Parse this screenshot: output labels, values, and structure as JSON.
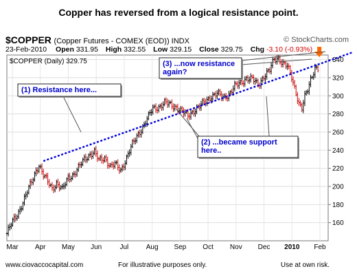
{
  "headline": "Copper has reversed from a logical resistance point.",
  "symbol": "$COPPER",
  "symbol_desc": "(Copper Futures - COMEX (EOD)) INDX",
  "brand": "© StockCharts.com",
  "ohlc": {
    "date": "23-Feb-2010",
    "open_label": "Open",
    "open": "331.95",
    "high_label": "High",
    "high": "332.55",
    "low_label": "Low",
    "low": "329.15",
    "close_label": "Close",
    "close": "329.75",
    "chg_label": "Chg",
    "chg": "-3.10 (-0.93%)"
  },
  "chart_data": {
    "type": "ohlc",
    "legend": "$COPPER (Daily) 329.75",
    "months": [
      "Mar",
      "Apr",
      "May",
      "Jun",
      "Jul",
      "Aug",
      "Sep",
      "Oct",
      "Nov",
      "Dec",
      "2010",
      "Feb"
    ],
    "ylim": [
      140,
      345
    ],
    "yticks": [
      160,
      180,
      200,
      220,
      240,
      260,
      280,
      300,
      320,
      340
    ],
    "axis_side": "right",
    "grid": true,
    "colors": {
      "up": "#000000",
      "down": "#cc0000",
      "trendline": "#0000dd",
      "arrow": "#ff6600"
    },
    "prices": [
      [
        0,
        148
      ],
      [
        3,
        158
      ],
      [
        8,
        172
      ],
      [
        13,
        190
      ],
      [
        17,
        205
      ],
      [
        20,
        218
      ],
      [
        22,
        224
      ],
      [
        25,
        212
      ],
      [
        28,
        205
      ],
      [
        31,
        198
      ],
      [
        34,
        204
      ],
      [
        38,
        196
      ],
      [
        42,
        210
      ],
      [
        46,
        214
      ],
      [
        49,
        220
      ],
      [
        53,
        230
      ],
      [
        57,
        236
      ],
      [
        60,
        238
      ],
      [
        63,
        228
      ],
      [
        67,
        232
      ],
      [
        71,
        222
      ],
      [
        74,
        224
      ],
      [
        78,
        218
      ],
      [
        82,
        232
      ],
      [
        86,
        246
      ],
      [
        90,
        258
      ],
      [
        93,
        266
      ],
      [
        96,
        274
      ],
      [
        100,
        286
      ],
      [
        104,
        288
      ],
      [
        108,
        292
      ],
      [
        112,
        290
      ],
      [
        116,
        288
      ],
      [
        120,
        282
      ],
      [
        124,
        278
      ],
      [
        128,
        284
      ],
      [
        132,
        288
      ],
      [
        136,
        294
      ],
      [
        140,
        300
      ],
      [
        144,
        302
      ],
      [
        148,
        298
      ],
      [
        152,
        302
      ],
      [
        156,
        310
      ],
      [
        160,
        314
      ],
      [
        164,
        320
      ],
      [
        168,
        318
      ],
      [
        172,
        312
      ],
      [
        176,
        322
      ],
      [
        180,
        328
      ],
      [
        183,
        340
      ],
      [
        186,
        342
      ],
      [
        189,
        336
      ],
      [
        192,
        332
      ],
      [
        195,
        320
      ],
      [
        198,
        304
      ],
      [
        200,
        292
      ],
      [
        202,
        286
      ],
      [
        204,
        298
      ],
      [
        206,
        306
      ],
      [
        208,
        318
      ],
      [
        211,
        332
      ],
      [
        213,
        330
      ]
    ],
    "trendline": {
      "from": [
        25,
        228
      ],
      "to": [
        218,
        342
      ]
    },
    "annotations": [
      {
        "text": "(1) Resistance here...",
        "color": "#0000cc"
      },
      {
        "text": "(2) ...became support",
        "text2": "here..",
        "color": "#0000cc"
      },
      {
        "text": "(3) ...now resistance",
        "text2": "again?",
        "color": "#0000cc"
      }
    ]
  },
  "footer": {
    "left": "www.ciovaccocapital.com",
    "middle": "For illustrative purposes only.",
    "right": "Use at own risk."
  }
}
